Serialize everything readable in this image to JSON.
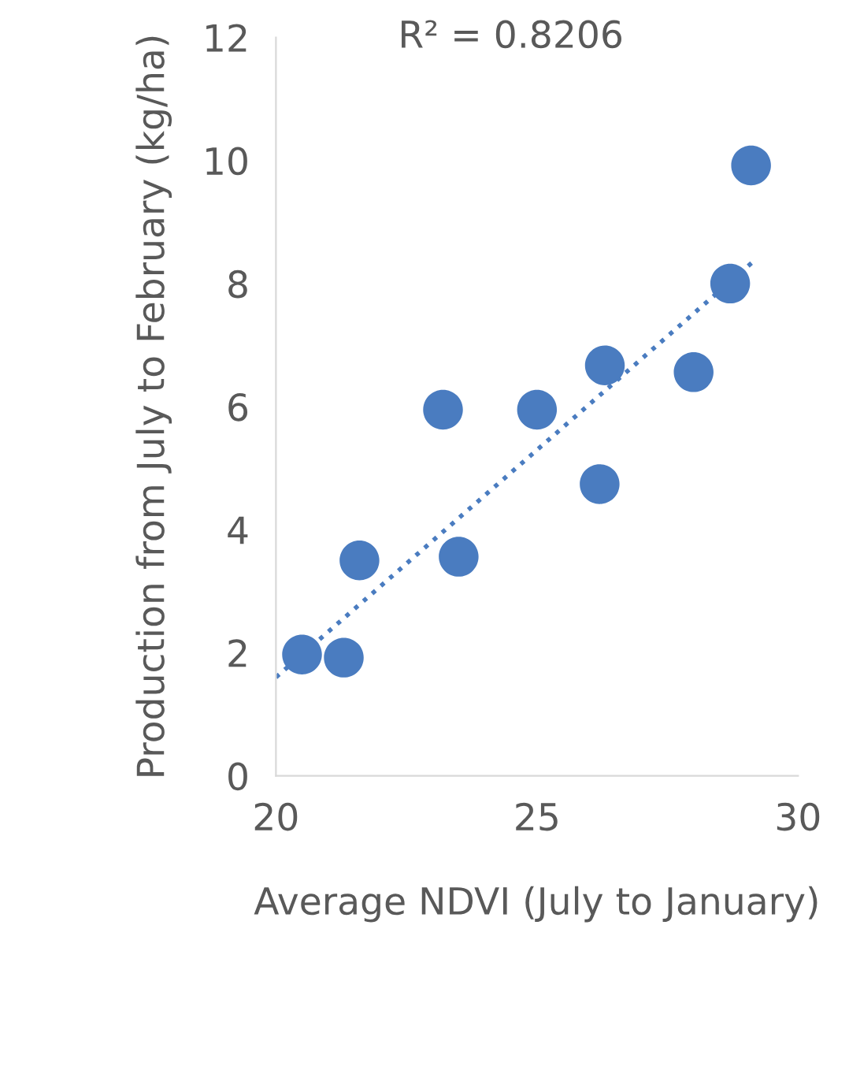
{
  "chart_data": {
    "type": "scatter",
    "xlabel": "Average NDVI (July to January)",
    "ylabel": "Production from July to February (kg/ha)",
    "annotations": [
      "R² = 0.8206"
    ],
    "series": [
      {
        "marker": "circle",
        "color": "#4a7cc0",
        "x": [
          20.5,
          21.3,
          21.6,
          23.2,
          23.5,
          25.0,
          26.3,
          26.2,
          28.0,
          28.7,
          29.1
        ],
        "values": [
          1.97,
          1.92,
          3.5,
          5.95,
          3.56,
          5.95,
          6.67,
          4.74,
          6.56,
          8.0,
          9.92
        ]
      },
      {
        "type": "line",
        "color": "#4a7cc0",
        "line_style": "dotted",
        "x": [
          20,
          29.2
        ],
        "values": [
          1.6,
          8.4
        ]
      }
    ],
    "xlim": [
      20,
      30
    ],
    "xticks": [
      20,
      25,
      30
    ],
    "ylim": [
      0,
      12
    ],
    "yticks": [
      0,
      2,
      4,
      6,
      8,
      10,
      12
    ],
    "grid": false,
    "legend": false
  }
}
